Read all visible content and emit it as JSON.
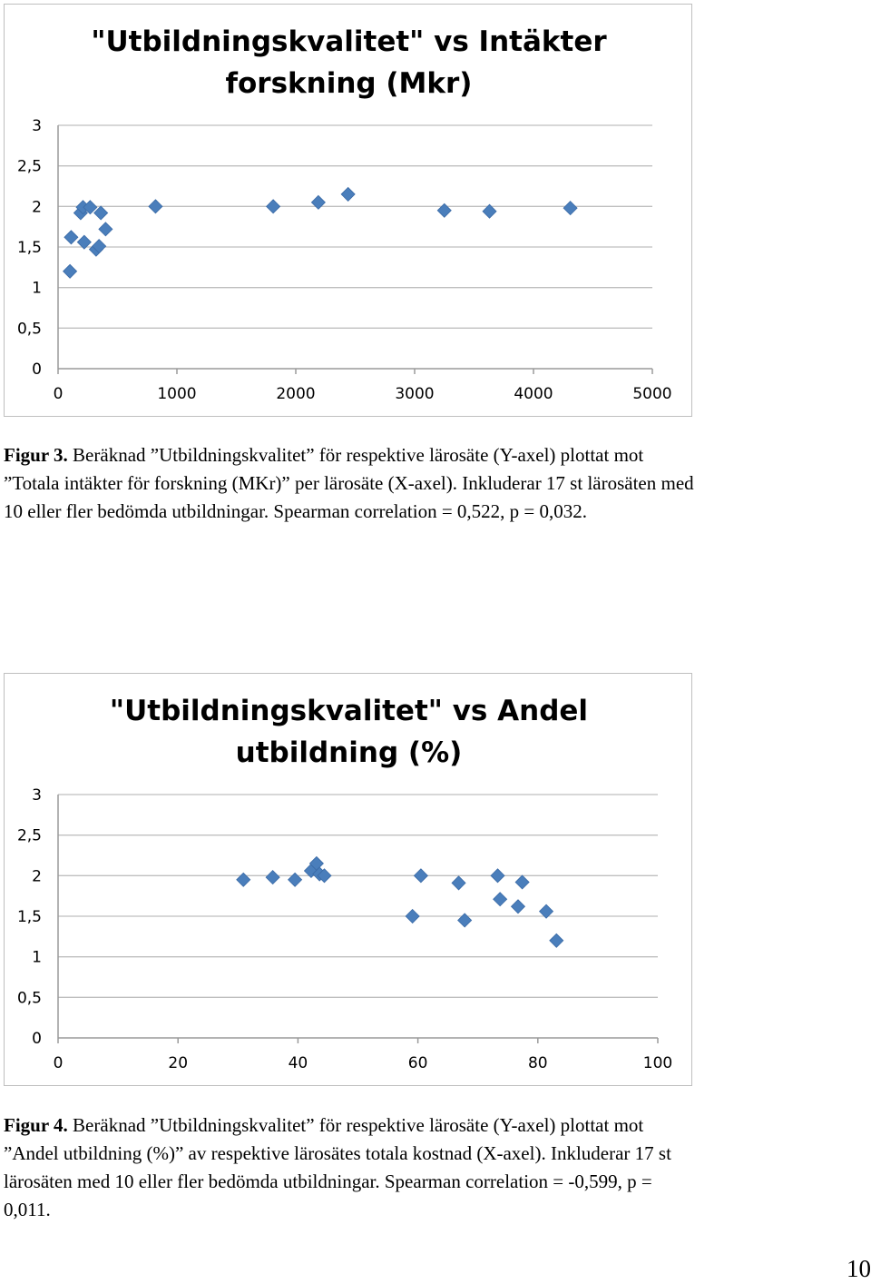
{
  "chart_data": [
    {
      "type": "scatter",
      "title_lines": [
        "\"Utbildningskvalitet\" vs Intäkter",
        "forskning (Mkr)"
      ],
      "xlim": [
        0,
        5000
      ],
      "ylim": [
        0,
        3
      ],
      "x_ticks": [
        "0",
        "1000",
        "2000",
        "3000",
        "4000",
        "5000"
      ],
      "y_ticks": [
        "0",
        "0,5",
        "1",
        "1,5",
        "2",
        "2,5",
        "3"
      ],
      "grid": "horizontal",
      "marker": "diamond",
      "color": "#4a7ebb",
      "points": [
        {
          "x": 100,
          "y": 1.2
        },
        {
          "x": 110,
          "y": 1.62
        },
        {
          "x": 190,
          "y": 1.92
        },
        {
          "x": 210,
          "y": 1.99
        },
        {
          "x": 220,
          "y": 1.56
        },
        {
          "x": 270,
          "y": 1.99
        },
        {
          "x": 320,
          "y": 1.47
        },
        {
          "x": 345,
          "y": 1.51
        },
        {
          "x": 360,
          "y": 1.92
        },
        {
          "x": 400,
          "y": 1.72
        },
        {
          "x": 820,
          "y": 2.0
        },
        {
          "x": 1810,
          "y": 2.0
        },
        {
          "x": 2190,
          "y": 2.05
        },
        {
          "x": 2440,
          "y": 2.15
        },
        {
          "x": 3250,
          "y": 1.95
        },
        {
          "x": 3630,
          "y": 1.94
        },
        {
          "x": 4310,
          "y": 1.98
        }
      ]
    },
    {
      "type": "scatter",
      "title_lines": [
        "\"Utbildningskvalitet\" vs Andel",
        "utbildning (%)"
      ],
      "xlim": [
        0,
        100
      ],
      "ylim": [
        0,
        3
      ],
      "x_ticks": [
        "0",
        "20",
        "40",
        "60",
        "80",
        "100"
      ],
      "y_ticks": [
        "0",
        "0,5",
        "1",
        "1,5",
        "2",
        "2,5",
        "3"
      ],
      "grid": "horizontal",
      "marker": "diamond",
      "color": "#4a7ebb",
      "points": [
        {
          "x": 30.9,
          "y": 1.95
        },
        {
          "x": 35.8,
          "y": 1.98
        },
        {
          "x": 39.5,
          "y": 1.95
        },
        {
          "x": 42.2,
          "y": 2.06
        },
        {
          "x": 43.1,
          "y": 2.15
        },
        {
          "x": 43.6,
          "y": 2.02
        },
        {
          "x": 44.4,
          "y": 2.0
        },
        {
          "x": 59.1,
          "y": 1.5
        },
        {
          "x": 60.5,
          "y": 2.0
        },
        {
          "x": 66.8,
          "y": 1.91
        },
        {
          "x": 67.8,
          "y": 1.45
        },
        {
          "x": 73.3,
          "y": 2.0
        },
        {
          "x": 73.7,
          "y": 1.71
        },
        {
          "x": 76.7,
          "y": 1.62
        },
        {
          "x": 77.4,
          "y": 1.92
        },
        {
          "x": 81.4,
          "y": 1.56
        },
        {
          "x": 83.1,
          "y": 1.2
        }
      ]
    }
  ],
  "captions": [
    {
      "label": "Figur 3.",
      "text": " Beräknad ”Utbildningskvalitet” för respektive lärosäte (Y-axel) plottat mot ”Totala intäkter för forskning (MKr)” per lärosäte (X-axel). Inkluderar 17 st lärosäten med 10 eller fler bedömda utbildningar. Spearman correlation = 0,522, p = 0,032."
    },
    {
      "label": "Figur 4.",
      "text": " Beräknad ”Utbildningskvalitet” för respektive lärosäte  (Y-axel) plottat mot ”Andel utbildning (%)” av respektive lärosätes totala kostnad (X-axel). Inkluderar 17 st lärosäten med 10 eller fler bedömda utbildningar. Spearman correlation =  -0,599, p = 0,011."
    }
  ],
  "page_number": "10"
}
